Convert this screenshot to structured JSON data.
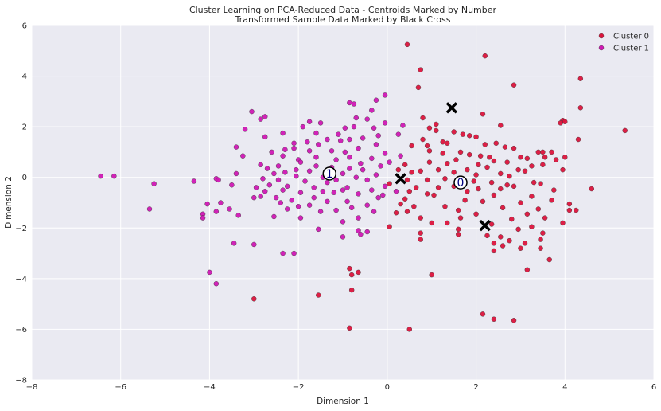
{
  "chart_data": {
    "type": "scatter",
    "title": "Cluster Learning on PCA-Reduced Data - Centroids Marked by Number",
    "subtitle": "Transformed Sample Data Marked by Black Cross",
    "xlabel": "Dimension 1",
    "ylabel": "Dimension 2",
    "xlim": [
      -8,
      6
    ],
    "ylim": [
      -8,
      6
    ],
    "xticks": [
      "−8",
      "−6",
      "−4",
      "−2",
      "0",
      "2",
      "4",
      "6"
    ],
    "yticks": [
      "−8",
      "−6",
      "−4",
      "−2",
      "0",
      "2",
      "4",
      "6"
    ],
    "xtick_values": [
      -8,
      -6,
      -4,
      -2,
      0,
      2,
      4,
      6
    ],
    "ytick_values": [
      -8,
      -6,
      -4,
      -2,
      0,
      2,
      4,
      6
    ],
    "grid": true,
    "legend_position": "top-right",
    "background": "#eaeaf2",
    "series": [
      {
        "name": "Cluster 0",
        "color": "#dc143c",
        "points": [
          [
            0.45,
            5.25
          ],
          [
            2.2,
            4.8
          ],
          [
            0.75,
            4.25
          ],
          [
            4.35,
            3.9
          ],
          [
            2.85,
            3.65
          ],
          [
            0.7,
            3.55
          ],
          [
            4.35,
            2.75
          ],
          [
            2.15,
            2.5
          ],
          [
            0.8,
            2.35
          ],
          [
            3.95,
            2.25
          ],
          [
            4.0,
            2.2
          ],
          [
            3.9,
            2.15
          ],
          [
            2.55,
            2.05
          ],
          [
            1.1,
            2.1
          ],
          [
            0.95,
            1.95
          ],
          [
            1.5,
            1.8
          ],
          [
            5.35,
            1.85
          ],
          [
            1.1,
            1.85
          ],
          [
            1.7,
            1.7
          ],
          [
            1.85,
            1.65
          ],
          [
            2.0,
            1.6
          ],
          [
            4.3,
            1.5
          ],
          [
            0.8,
            1.5
          ],
          [
            1.25,
            1.4
          ],
          [
            2.45,
            1.35
          ],
          [
            1.35,
            1.35
          ],
          [
            2.2,
            1.3
          ],
          [
            0.9,
            1.25
          ],
          [
            0.55,
            1.25
          ],
          [
            2.65,
            1.2
          ],
          [
            2.85,
            1.15
          ],
          [
            3.4,
            1.0
          ],
          [
            3.5,
            1.0
          ],
          [
            3.7,
            1.0
          ],
          [
            0.95,
            1.05
          ],
          [
            1.65,
            1.0
          ],
          [
            1.25,
            0.95
          ],
          [
            1.85,
            0.9
          ],
          [
            2.1,
            0.85
          ],
          [
            2.3,
            0.8
          ],
          [
            3.55,
            0.8
          ],
          [
            3.15,
            0.75
          ],
          [
            3.0,
            0.8
          ],
          [
            4.0,
            0.8
          ],
          [
            3.8,
            0.7
          ],
          [
            1.55,
            0.7
          ],
          [
            2.4,
            0.65
          ],
          [
            2.7,
            0.6
          ],
          [
            0.95,
            0.6
          ],
          [
            1.35,
            0.55
          ],
          [
            2.05,
            0.5
          ],
          [
            3.5,
            0.5
          ],
          [
            3.25,
            0.45
          ],
          [
            2.25,
            0.4
          ],
          [
            1.15,
            0.3
          ],
          [
            1.8,
            0.3
          ],
          [
            2.95,
            0.3
          ],
          [
            3.1,
            0.25
          ],
          [
            3.95,
            0.3
          ],
          [
            0.75,
            0.25
          ],
          [
            1.5,
            0.2
          ],
          [
            0.55,
            0.2
          ],
          [
            2.55,
            0.15
          ],
          [
            2.0,
            0.1
          ],
          [
            2.75,
            0.05
          ],
          [
            1.3,
            -0.05
          ],
          [
            0.45,
            -0.1
          ],
          [
            0.9,
            -0.1
          ],
          [
            1.95,
            -0.15
          ],
          [
            2.35,
            -0.2
          ],
          [
            3.3,
            -0.2
          ],
          [
            3.45,
            -0.25
          ],
          [
            2.7,
            -0.3
          ],
          [
            2.85,
            -0.35
          ],
          [
            1.5,
            -0.35
          ],
          [
            0.65,
            -0.4
          ],
          [
            1.15,
            -0.4
          ],
          [
            2.05,
            -0.45
          ],
          [
            2.55,
            -0.45
          ],
          [
            3.75,
            -0.5
          ],
          [
            4.6,
            -0.45
          ],
          [
            0.5,
            -0.55
          ],
          [
            1.8,
            -0.55
          ],
          [
            0.9,
            -0.65
          ],
          [
            1.05,
            -0.7
          ],
          [
            2.4,
            -0.7
          ],
          [
            3.25,
            -0.75
          ],
          [
            0.4,
            -0.85
          ],
          [
            1.75,
            -0.9
          ],
          [
            2.15,
            -0.95
          ],
          [
            3.0,
            -1.0
          ],
          [
            3.7,
            -0.9
          ],
          [
            4.1,
            -1.05
          ],
          [
            0.3,
            -1.05
          ],
          [
            1.3,
            -1.15
          ],
          [
            0.6,
            -1.15
          ],
          [
            2.6,
            -1.2
          ],
          [
            3.4,
            -1.25
          ],
          [
            4.1,
            -1.3
          ],
          [
            4.25,
            -1.3
          ],
          [
            1.6,
            -1.3
          ],
          [
            0.45,
            -1.35
          ],
          [
            0.2,
            -1.4
          ],
          [
            2.0,
            -1.45
          ],
          [
            3.15,
            -1.45
          ],
          [
            0.75,
            -1.6
          ],
          [
            1.65,
            -1.6
          ],
          [
            3.55,
            -1.6
          ],
          [
            2.8,
            -1.65
          ],
          [
            3.95,
            -1.8
          ],
          [
            1.35,
            -1.8
          ],
          [
            2.35,
            -1.85
          ],
          [
            1.0,
            -1.8
          ],
          [
            0.05,
            -1.95
          ],
          [
            3.25,
            -1.95
          ],
          [
            1.6,
            -2.05
          ],
          [
            2.95,
            -2.05
          ],
          [
            0.75,
            -2.2
          ],
          [
            3.5,
            -2.2
          ],
          [
            1.6,
            -2.25
          ],
          [
            2.25,
            -2.3
          ],
          [
            2.55,
            -2.35
          ],
          [
            3.45,
            -2.45
          ],
          [
            2.75,
            -2.5
          ],
          [
            2.4,
            -2.6
          ],
          [
            3.1,
            -2.6
          ],
          [
            2.6,
            -2.7
          ],
          [
            0.75,
            -2.45
          ],
          [
            3.0,
            -2.8
          ],
          [
            3.45,
            -2.8
          ],
          [
            2.4,
            -2.9
          ],
          [
            3.65,
            -3.25
          ],
          [
            1.0,
            -3.85
          ],
          [
            3.15,
            -3.65
          ],
          [
            -0.85,
            -3.6
          ],
          [
            -0.8,
            -3.85
          ],
          [
            -0.65,
            -3.75
          ],
          [
            -0.8,
            -4.45
          ],
          [
            -1.55,
            -4.65
          ],
          [
            -3.0,
            -4.8
          ],
          [
            2.15,
            -5.4
          ],
          [
            2.4,
            -5.6
          ],
          [
            2.85,
            -5.65
          ],
          [
            -0.85,
            -5.95
          ],
          [
            0.5,
            -6.0
          ],
          [
            0.25,
            0.3
          ],
          [
            0.4,
            0.5
          ],
          [
            0.05,
            -0.25
          ]
        ]
      },
      {
        "name": "Cluster 1",
        "color": "#d018b4",
        "points": [
          [
            -0.85,
            2.95
          ],
          [
            -0.75,
            2.9
          ],
          [
            -0.05,
            3.25
          ],
          [
            -0.25,
            3.05
          ],
          [
            -0.35,
            2.65
          ],
          [
            -3.05,
            2.6
          ],
          [
            -0.7,
            2.35
          ],
          [
            -0.45,
            2.3
          ],
          [
            -2.75,
            2.4
          ],
          [
            -2.85,
            2.3
          ],
          [
            -1.75,
            2.2
          ],
          [
            -1.5,
            2.15
          ],
          [
            -0.05,
            2.15
          ],
          [
            -1.9,
            2.0
          ],
          [
            -0.75,
            2.0
          ],
          [
            -0.3,
            1.95
          ],
          [
            -0.95,
            1.95
          ],
          [
            -3.2,
            1.9
          ],
          [
            -2.35,
            1.75
          ],
          [
            -1.6,
            1.75
          ],
          [
            -1.1,
            1.7
          ],
          [
            0.25,
            1.7
          ],
          [
            -0.2,
            1.65
          ],
          [
            -2.75,
            1.6
          ],
          [
            -0.55,
            1.55
          ],
          [
            -0.85,
            1.5
          ],
          [
            -1.35,
            1.5
          ],
          [
            -1.05,
            1.45
          ],
          [
            -1.8,
            1.4
          ],
          [
            -2.1,
            1.35
          ],
          [
            -0.25,
            1.3
          ],
          [
            -1.55,
            1.3
          ],
          [
            -3.4,
            1.2
          ],
          [
            -2.1,
            1.15
          ],
          [
            -0.65,
            1.15
          ],
          [
            -2.3,
            1.1
          ],
          [
            -1.75,
            1.05
          ],
          [
            -1.25,
            1.05
          ],
          [
            -0.95,
            1.0
          ],
          [
            -2.6,
            1.0
          ],
          [
            -0.05,
            0.95
          ],
          [
            0.3,
            0.85
          ],
          [
            -3.25,
            0.85
          ],
          [
            -2.35,
            0.85
          ],
          [
            -1.6,
            0.8
          ],
          [
            -0.85,
            0.8
          ],
          [
            -0.35,
            0.75
          ],
          [
            -2.0,
            0.7
          ],
          [
            -1.15,
            0.7
          ],
          [
            -1.95,
            0.6
          ],
          [
            -0.6,
            0.55
          ],
          [
            -2.85,
            0.5
          ],
          [
            -2.45,
            0.45
          ],
          [
            -1.6,
            0.45
          ],
          [
            -0.15,
            0.45
          ],
          [
            -1.25,
            0.4
          ],
          [
            -2.7,
            0.35
          ],
          [
            -0.85,
            0.35
          ],
          [
            -2.05,
            0.3
          ],
          [
            -0.55,
            0.3
          ],
          [
            -1.75,
            0.25
          ],
          [
            -2.3,
            0.2
          ],
          [
            -3.4,
            0.15
          ],
          [
            -2.55,
            0.15
          ],
          [
            -1.0,
            0.15
          ],
          [
            -0.25,
            0.1
          ],
          [
            -6.45,
            0.05
          ],
          [
            -6.15,
            0.05
          ],
          [
            -2.05,
            0.05
          ],
          [
            -1.45,
            0.0
          ],
          [
            -0.7,
            0.0
          ],
          [
            -3.85,
            -0.05
          ],
          [
            -3.8,
            -0.1
          ],
          [
            -2.8,
            -0.05
          ],
          [
            -2.45,
            -0.1
          ],
          [
            -1.15,
            -0.1
          ],
          [
            -0.45,
            -0.1
          ],
          [
            -4.35,
            -0.15
          ],
          [
            -1.85,
            -0.15
          ],
          [
            -1.35,
            -0.2
          ],
          [
            -5.25,
            -0.25
          ],
          [
            -3.5,
            -0.3
          ],
          [
            -2.65,
            -0.3
          ],
          [
            -0.05,
            -0.35
          ],
          [
            -2.25,
            -0.35
          ],
          [
            -1.65,
            -0.4
          ],
          [
            -0.9,
            -0.4
          ],
          [
            -2.95,
            -0.4
          ],
          [
            -2.35,
            -0.5
          ],
          [
            -1.0,
            -0.5
          ],
          [
            -0.35,
            -0.5
          ],
          [
            -2.75,
            -0.55
          ],
          [
            -1.45,
            -0.55
          ],
          [
            -1.95,
            -0.6
          ],
          [
            -1.2,
            -0.6
          ],
          [
            -0.65,
            -0.65
          ],
          [
            -2.85,
            -0.75
          ],
          [
            -3.0,
            -0.8
          ],
          [
            -2.5,
            -0.8
          ],
          [
            -1.65,
            -0.8
          ],
          [
            -0.2,
            -0.8
          ],
          [
            -2.15,
            -0.9
          ],
          [
            -1.35,
            -0.95
          ],
          [
            -0.9,
            -0.95
          ],
          [
            -3.75,
            -1.0
          ],
          [
            -2.4,
            -1.0
          ],
          [
            -4.05,
            -1.05
          ],
          [
            -1.75,
            -1.1
          ],
          [
            -0.45,
            -1.1
          ],
          [
            -2.0,
            -1.15
          ],
          [
            -0.8,
            -1.2
          ],
          [
            -5.35,
            -1.25
          ],
          [
            -3.55,
            -1.25
          ],
          [
            -2.25,
            -1.25
          ],
          [
            -1.15,
            -1.3
          ],
          [
            -3.85,
            -1.35
          ],
          [
            -1.5,
            -1.35
          ],
          [
            -0.3,
            -1.35
          ],
          [
            -4.15,
            -1.45
          ],
          [
            -3.35,
            -1.5
          ],
          [
            -2.55,
            -1.55
          ],
          [
            -1.95,
            -1.6
          ],
          [
            -0.65,
            -1.6
          ],
          [
            -4.15,
            -1.6
          ],
          [
            -1.0,
            -1.75
          ],
          [
            -1.55,
            -2.05
          ],
          [
            -0.65,
            -2.1
          ],
          [
            -0.45,
            -2.15
          ],
          [
            -0.6,
            -2.25
          ],
          [
            -1.0,
            -2.35
          ],
          [
            -3.45,
            -2.6
          ],
          [
            -3.0,
            -2.65
          ],
          [
            -2.35,
            -3.0
          ],
          [
            -2.1,
            -3.0
          ],
          [
            -4.0,
            -3.75
          ],
          [
            -3.85,
            -4.2
          ],
          [
            0.2,
            -0.55
          ],
          [
            -0.1,
            -0.7
          ],
          [
            0.05,
            0.6
          ],
          [
            0.35,
            2.05
          ]
        ]
      }
    ],
    "centroids": [
      {
        "label": "0",
        "x": 1.65,
        "y": -0.2
      },
      {
        "label": "1",
        "x": -1.3,
        "y": 0.15
      }
    ],
    "samples": [
      {
        "x": 0.3,
        "y": -0.05
      },
      {
        "x": 1.45,
        "y": 2.75
      },
      {
        "x": 2.2,
        "y": -1.9
      }
    ]
  }
}
